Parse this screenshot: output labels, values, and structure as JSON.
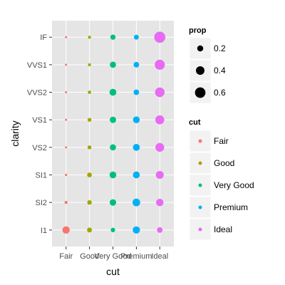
{
  "chart_data": {
    "type": "scatter",
    "xlabel": "cut",
    "ylabel": "clarity",
    "x_categories": [
      "Fair",
      "Good",
      "Very Good",
      "Premium",
      "Ideal"
    ],
    "y_categories": [
      "I1",
      "SI2",
      "SI1",
      "VS2",
      "VS1",
      "VVS2",
      "VVS1",
      "IF"
    ],
    "grid": true,
    "legend_position": "right",
    "colors": {
      "Fair": "#F8766D",
      "Good": "#A3A500",
      "Very Good": "#00BF7D",
      "Premium": "#00B0F6",
      "Ideal": "#E76BF3"
    },
    "panel_background": "#E5E5E5",
    "grid_color": "#FFFFFF",
    "points": [
      {
        "clarity": "IF",
        "cut": "Fair",
        "prop": 0.01
      },
      {
        "clarity": "IF",
        "cut": "Good",
        "prop": 0.05
      },
      {
        "clarity": "IF",
        "cut": "Very Good",
        "prop": 0.15
      },
      {
        "clarity": "IF",
        "cut": "Premium",
        "prop": 0.13
      },
      {
        "clarity": "IF",
        "cut": "Ideal",
        "prop": 0.67
      },
      {
        "clarity": "VVS1",
        "cut": "Fair",
        "prop": 0.01
      },
      {
        "clarity": "VVS1",
        "cut": "Good",
        "prop": 0.05
      },
      {
        "clarity": "VVS1",
        "cut": "Very Good",
        "prop": 0.21
      },
      {
        "clarity": "VVS1",
        "cut": "Premium",
        "prop": 0.17
      },
      {
        "clarity": "VVS1",
        "cut": "Ideal",
        "prop": 0.55
      },
      {
        "clarity": "VVS2",
        "cut": "Fair",
        "prop": 0.01
      },
      {
        "clarity": "VVS2",
        "cut": "Good",
        "prop": 0.06
      },
      {
        "clarity": "VVS2",
        "cut": "Very Good",
        "prop": 0.26
      },
      {
        "clarity": "VVS2",
        "cut": "Premium",
        "prop": 0.17
      },
      {
        "clarity": "VVS2",
        "cut": "Ideal",
        "prop": 0.5
      },
      {
        "clarity": "VS1",
        "cut": "Fair",
        "prop": 0.02
      },
      {
        "clarity": "VS1",
        "cut": "Good",
        "prop": 0.08
      },
      {
        "clarity": "VS1",
        "cut": "Very Good",
        "prop": 0.22
      },
      {
        "clarity": "VS1",
        "cut": "Premium",
        "prop": 0.25
      },
      {
        "clarity": "VS1",
        "cut": "Ideal",
        "prop": 0.44
      },
      {
        "clarity": "VS2",
        "cut": "Fair",
        "prop": 0.02
      },
      {
        "clarity": "VS2",
        "cut": "Good",
        "prop": 0.08
      },
      {
        "clarity": "VS2",
        "cut": "Very Good",
        "prop": 0.21
      },
      {
        "clarity": "VS2",
        "cut": "Premium",
        "prop": 0.26
      },
      {
        "clarity": "VS2",
        "cut": "Ideal",
        "prop": 0.42
      },
      {
        "clarity": "SI1",
        "cut": "Fair",
        "prop": 0.03
      },
      {
        "clarity": "SI1",
        "cut": "Good",
        "prop": 0.12
      },
      {
        "clarity": "SI1",
        "cut": "Very Good",
        "prop": 0.25
      },
      {
        "clarity": "SI1",
        "cut": "Premium",
        "prop": 0.26
      },
      {
        "clarity": "SI1",
        "cut": "Ideal",
        "prop": 0.34
      },
      {
        "clarity": "SI2",
        "cut": "Fair",
        "prop": 0.05
      },
      {
        "clarity": "SI2",
        "cut": "Good",
        "prop": 0.11
      },
      {
        "clarity": "SI2",
        "cut": "Very Good",
        "prop": 0.23
      },
      {
        "clarity": "SI2",
        "cut": "Premium",
        "prop": 0.32
      },
      {
        "clarity": "SI2",
        "cut": "Ideal",
        "prop": 0.3
      },
      {
        "clarity": "I1",
        "cut": "Fair",
        "prop": 0.3
      },
      {
        "clarity": "I1",
        "cut": "Good",
        "prop": 0.13
      },
      {
        "clarity": "I1",
        "cut": "Very Good",
        "prop": 0.11
      },
      {
        "clarity": "I1",
        "cut": "Premium",
        "prop": 0.29
      },
      {
        "clarity": "I1",
        "cut": "Ideal",
        "prop": 0.17
      }
    ],
    "size_legend": {
      "title": "prop",
      "breaks": [
        {
          "value": 0.2,
          "label": "0.2"
        },
        {
          "value": 0.4,
          "label": "0.4"
        },
        {
          "value": 0.6,
          "label": "0.6"
        }
      ]
    },
    "color_legend": {
      "title": "cut",
      "items": [
        "Fair",
        "Good",
        "Very Good",
        "Premium",
        "Ideal"
      ]
    }
  }
}
